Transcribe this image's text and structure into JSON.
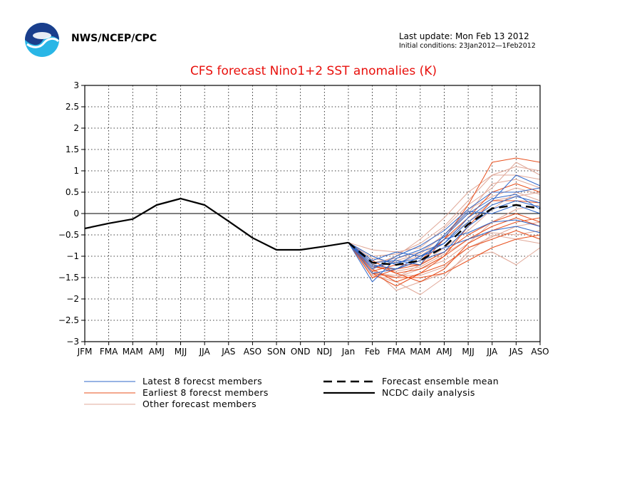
{
  "header": {
    "agency": "NWS/NCEP/CPC",
    "last_update": "Last update: Mon Feb 13 2012",
    "initial_conditions": "Initial conditions: 23Jan2012—1Feb2012"
  },
  "colors": {
    "latest": "#2f67c9",
    "earliest": "#e8501e",
    "other": "#e0a898",
    "mean": "#000000",
    "analysis": "#000000",
    "title": "#e8100c"
  },
  "chart_data": {
    "type": "line",
    "title": "CFS forecast Nino1+2 SST anomalies (K)",
    "xlabel": "",
    "ylabel": "",
    "categories": [
      "JFM",
      "FMA",
      "MAM",
      "AMJ",
      "MJJ",
      "JJA",
      "JAS",
      "ASO",
      "SON",
      "OND",
      "NDJ",
      "Jan",
      "Feb",
      "FMA",
      "MAM",
      "AMJ",
      "MJJ",
      "JJA",
      "JAS",
      "ASO"
    ],
    "yticks": [
      "3",
      "2.5",
      "2",
      "1.5",
      "1",
      "0.5",
      "0",
      "−0.5",
      "−1",
      "−1.5",
      "−2",
      "−2.5",
      "−3"
    ],
    "ylim": [
      -3,
      3
    ],
    "grid": true,
    "zero_line": true,
    "legend": [
      {
        "label": "Latest 8 forecst members",
        "color": "#2f67c9",
        "style": "solid"
      },
      {
        "label": "Earliest 8 forecst members",
        "color": "#e8501e",
        "style": "solid"
      },
      {
        "label": "Other forecast members",
        "color": "#e0a898",
        "style": "solid"
      },
      {
        "label": "Forecast ensemble mean",
        "color": "#000000",
        "style": "dashed"
      },
      {
        "label": "NCDC daily analysis",
        "color": "#000000",
        "style": "solid"
      }
    ],
    "analysis": {
      "x": [
        0,
        1,
        2,
        3,
        4,
        5,
        6,
        7,
        8,
        9,
        10,
        11
      ],
      "values": [
        -0.35,
        -0.23,
        -0.13,
        0.2,
        0.35,
        0.2,
        -0.18,
        -0.57,
        -0.85,
        -0.85,
        -0.77,
        -0.68
      ]
    },
    "ensemble_mean": {
      "x": [
        11,
        12,
        13,
        14,
        15,
        16,
        17,
        18,
        19
      ],
      "values": [
        -0.68,
        -1.15,
        -1.2,
        -1.1,
        -0.78,
        -0.25,
        0.12,
        0.2,
        0.12
      ]
    },
    "members_latest": {
      "x": [
        11,
        12,
        13,
        14,
        15,
        16,
        17,
        18,
        19
      ],
      "series": [
        [
          -0.68,
          -1.6,
          -1.05,
          -0.85,
          -0.55,
          0.0,
          0.35,
          0.45,
          0.1
        ],
        [
          -0.68,
          -1.3,
          -1.0,
          -0.75,
          -0.4,
          0.1,
          0.5,
          0.5,
          0.6
        ],
        [
          -0.68,
          -1.1,
          -0.9,
          -1.0,
          -0.7,
          -0.2,
          0.2,
          0.4,
          0.25
        ],
        [
          -0.68,
          -1.25,
          -1.15,
          -1.05,
          -0.6,
          -0.45,
          -0.2,
          -0.15,
          -0.3
        ],
        [
          -0.68,
          -1.2,
          -1.3,
          -1.1,
          -0.9,
          -0.3,
          0.1,
          0.3,
          0.15
        ],
        [
          -0.68,
          -1.0,
          -1.2,
          -0.9,
          -0.7,
          -0.1,
          0.3,
          0.9,
          0.65
        ],
        [
          -0.68,
          -1.4,
          -1.3,
          -1.0,
          -0.8,
          -0.6,
          -0.4,
          -0.3,
          -0.45
        ],
        [
          -0.68,
          -1.15,
          -1.1,
          -1.2,
          -0.5,
          0.05,
          0.0,
          0.2,
          0.0
        ]
      ]
    },
    "members_earliest": {
      "x": [
        11,
        12,
        13,
        14,
        15,
        16,
        17,
        18,
        19
      ],
      "series": [
        [
          -0.68,
          -1.4,
          -1.5,
          -1.5,
          -1.4,
          -1.1,
          -0.8,
          -0.6,
          -0.5
        ],
        [
          -0.68,
          -1.3,
          -1.6,
          -1.4,
          -1.0,
          -0.3,
          0.3,
          0.3,
          0.25
        ],
        [
          -0.68,
          -1.35,
          -1.2,
          -1.2,
          -0.6,
          0.2,
          1.2,
          1.3,
          1.2
        ],
        [
          -0.68,
          -1.2,
          -1.4,
          -1.6,
          -1.3,
          -0.7,
          -0.4,
          -0.2,
          -0.1
        ],
        [
          -0.68,
          -1.5,
          -1.3,
          -1.1,
          -0.6,
          -0.1,
          0.5,
          0.7,
          0.5
        ],
        [
          -0.68,
          -1.4,
          -1.7,
          -1.4,
          -1.2,
          -0.8,
          -0.6,
          -0.4,
          -0.6
        ],
        [
          -0.68,
          -1.25,
          -1.3,
          -1.2,
          -0.9,
          -0.5,
          -0.2,
          0.0,
          -0.2
        ],
        [
          -0.68,
          -1.1,
          -1.4,
          -1.3,
          -1.0,
          -0.6,
          -0.3,
          -0.1,
          -0.3
        ]
      ]
    },
    "members_other": {
      "x": [
        11,
        12,
        13,
        14,
        15,
        16,
        17,
        18,
        19
      ],
      "series": [
        [
          -0.68,
          -1.0,
          -0.95,
          -0.7,
          -0.3,
          0.3,
          0.9,
          1.1,
          1.0
        ],
        [
          -0.68,
          -1.2,
          -1.0,
          -0.6,
          -0.1,
          0.5,
          0.9,
          0.9,
          0.8
        ],
        [
          -0.68,
          -1.3,
          -1.8,
          -1.6,
          -1.4,
          -1.0,
          -0.9,
          -1.2,
          -0.8
        ],
        [
          -0.68,
          -1.45,
          -1.6,
          -1.9,
          -1.5,
          -0.9,
          -0.5,
          -0.6,
          -0.7
        ],
        [
          -0.68,
          -1.15,
          -1.05,
          -0.9,
          -0.5,
          0.0,
          0.7,
          0.8,
          0.6
        ],
        [
          -0.68,
          -1.35,
          -1.5,
          -1.2,
          -0.8,
          -0.4,
          0.1,
          0.5,
          0.3
        ],
        [
          -0.68,
          -0.85,
          -0.9,
          -0.8,
          -0.35,
          0.2,
          0.6,
          1.2,
          0.9
        ],
        [
          -0.68,
          -1.5,
          -1.5,
          -1.3,
          -1.1,
          -0.7,
          -0.2,
          0.1,
          0.2
        ],
        [
          -0.68,
          -1.05,
          -1.15,
          -1.0,
          -0.6,
          -0.2,
          0.3,
          0.4,
          0.5
        ],
        [
          -0.68,
          -1.25,
          -1.35,
          -1.25,
          -0.95,
          -0.6,
          -0.45,
          -0.5,
          -0.4
        ],
        [
          -0.68,
          -1.3,
          -1.1,
          -0.95,
          -0.5,
          0.1,
          0.4,
          0.6,
          0.45
        ],
        [
          -0.68,
          -1.4,
          -1.45,
          -1.45,
          -1.25,
          -0.8,
          -0.55,
          -0.3,
          -0.2
        ]
      ]
    }
  }
}
